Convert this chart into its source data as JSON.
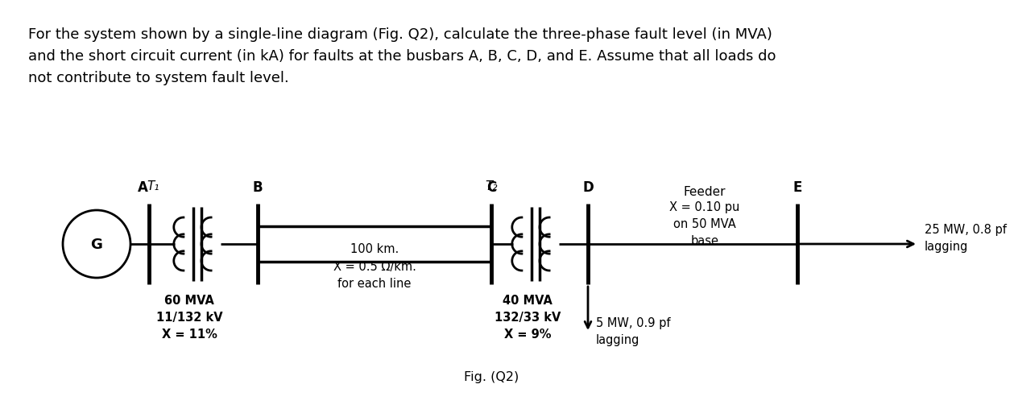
{
  "title_text": "For the system shown by a single-line diagram (Fig. Q2), calculate the three-phase fault level (in MVA)\nand the short circuit current (in kA) for faults at the busbars A, B, C, D, and E. Assume that all loads do\nnot contribute to system fault level.",
  "fig_label": "Fig. (Q2)",
  "bg_color": "#ffffff",
  "line_color": "#000000",
  "text_color": "#000000",
  "generator_label": "G",
  "T1_label": "T₁",
  "T2_label": "T₂",
  "line_annotation": "100 km.\nX = 0.5 Ω/km.\nfor each line",
  "T1_annotation": "60 MVA\n11/132 kV\nX = 11%",
  "T2_annotation": "40 MVA\n132/33 kV\nX = 9%",
  "feeder_label": "Feeder",
  "feeder_x_annotation": "X = 0.10 pu\non 50 MVA\nbase",
  "load_D_annotation": "5 MW, 0.9 pf\nlagging",
  "load_E_annotation": "25 MW, 0.8 pf\nlagging",
  "font_size_title": 13.0,
  "font_size_label": 11,
  "font_size_annot": 10.5
}
